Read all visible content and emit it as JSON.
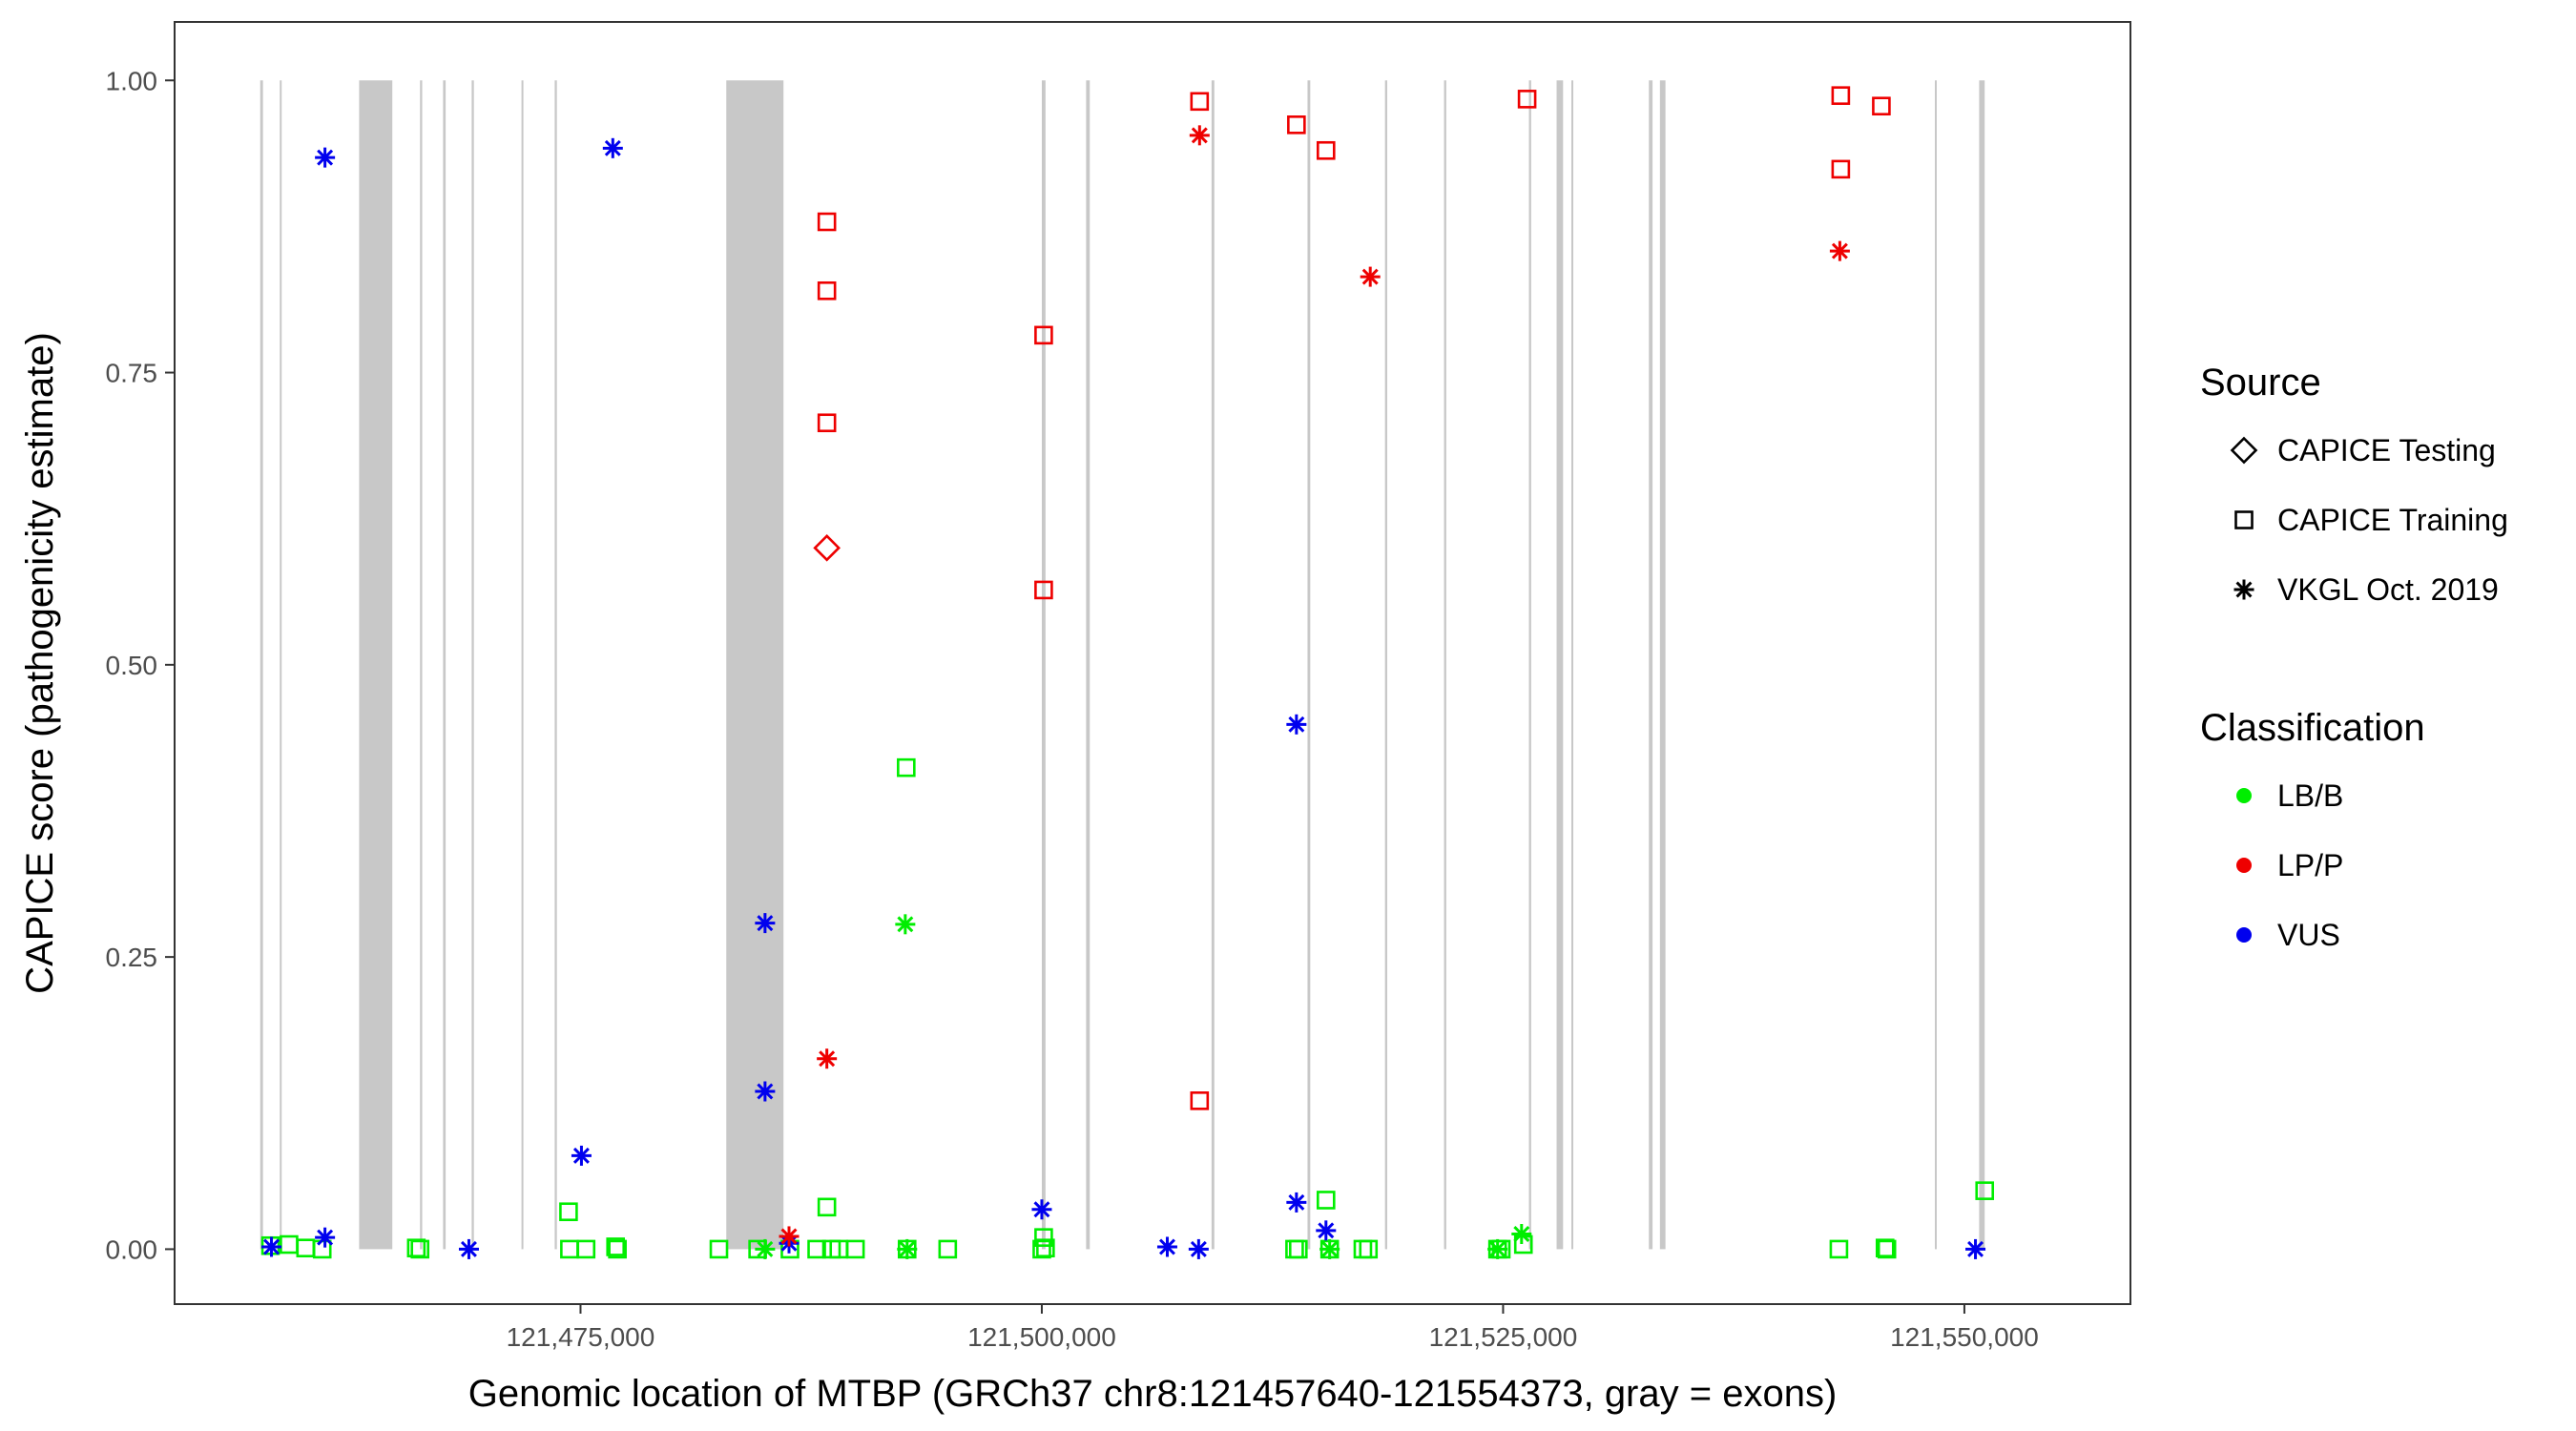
{
  "chart_data": {
    "type": "scatter",
    "title": "",
    "xlabel": "Genomic location of MTBP (GRCh37 chr8:121457640-121554373, gray = exons)",
    "ylabel": "CAPICE score (pathogenicity estimate)",
    "xlim": [
      121453000,
      121559000
    ],
    "ylim": [
      -0.047,
      1.05
    ],
    "x_ticks": [
      121475000,
      121500000,
      121525000,
      121550000
    ],
    "x_tick_labels": [
      "121,475,000",
      "121,500,000",
      "121,525,000",
      "121,550,000"
    ],
    "y_ticks": [
      0,
      0.25,
      0.5,
      0.75,
      1
    ],
    "y_tick_labels": [
      "0.00",
      "0.25",
      "0.50",
      "0.75",
      "1.00"
    ],
    "grid": false,
    "exon_color": "#c8c8c8",
    "exons": [
      [
        121457640,
        121457790
      ],
      [
        121458700,
        121458800
      ],
      [
        121463000,
        121464800
      ],
      [
        121466300,
        121466420
      ],
      [
        121467550,
        121467690
      ],
      [
        121469100,
        121469220
      ],
      [
        121471800,
        121471900
      ],
      [
        121473600,
        121473720
      ],
      [
        121482900,
        121486000
      ],
      [
        121500000,
        121500200
      ],
      [
        121502400,
        121502600
      ],
      [
        121509200,
        121509350
      ],
      [
        121514400,
        121514550
      ],
      [
        121518600,
        121518720
      ],
      [
        121521800,
        121521920
      ],
      [
        121526400,
        121526520
      ],
      [
        121527900,
        121528250
      ],
      [
        121528700,
        121528800
      ],
      [
        121532900,
        121533100
      ],
      [
        121533500,
        121533800
      ],
      [
        121548400,
        121548500
      ],
      [
        121550800,
        121551100
      ]
    ],
    "legend": {
      "placement": "right",
      "source_title": "Source",
      "source_entries": [
        {
          "label": "CAPICE Testing",
          "shape": "diamond"
        },
        {
          "label": "CAPICE Training",
          "shape": "square"
        },
        {
          "label": "VKGL Oct. 2019",
          "shape": "asterisk"
        }
      ],
      "class_title": "Classification",
      "class_entries": [
        {
          "label": "LB/B",
          "color": "#00ee00"
        },
        {
          "label": "LP/P",
          "color": "#ee0000"
        },
        {
          "label": "VUS",
          "color": "#0000ee"
        }
      ]
    },
    "series": [
      {
        "name": "CAPICE Training",
        "shape": "square",
        "points": [
          {
            "x": 121488350,
            "y": 0.879,
            "cls": "LP/P"
          },
          {
            "x": 121488350,
            "y": 0.82,
            "cls": "LP/P"
          },
          {
            "x": 121488350,
            "y": 0.707,
            "cls": "LP/P"
          },
          {
            "x": 121500100,
            "y": 0.782,
            "cls": "LP/P"
          },
          {
            "x": 121500100,
            "y": 0.564,
            "cls": "LP/P"
          },
          {
            "x": 121508550,
            "y": 0.982,
            "cls": "LP/P"
          },
          {
            "x": 121508550,
            "y": 0.127,
            "cls": "LP/P"
          },
          {
            "x": 121513800,
            "y": 0.962,
            "cls": "LP/P"
          },
          {
            "x": 121515400,
            "y": 0.94,
            "cls": "LP/P"
          },
          {
            "x": 121526300,
            "y": 0.984,
            "cls": "LP/P"
          },
          {
            "x": 121543300,
            "y": 0.987,
            "cls": "LP/P"
          },
          {
            "x": 121545500,
            "y": 0.978,
            "cls": "LP/P"
          },
          {
            "x": 121543300,
            "y": 0.924,
            "cls": "LP/P"
          },
          {
            "x": 121492650,
            "y": 0.412,
            "cls": "LB/B"
          },
          {
            "x": 121474350,
            "y": 0.032,
            "cls": "LB/B"
          },
          {
            "x": 121488350,
            "y": 0.036,
            "cls": "LB/B"
          },
          {
            "x": 121515400,
            "y": 0.042,
            "cls": "LB/B"
          },
          {
            "x": 121551100,
            "y": 0.05,
            "cls": "LB/B"
          },
          {
            "x": 121500100,
            "y": 0.01,
            "cls": "LB/B"
          },
          {
            "x": 121458200,
            "y": 0.003,
            "cls": "LB/B"
          },
          {
            "x": 121459200,
            "y": 0.004,
            "cls": "LB/B"
          },
          {
            "x": 121460100,
            "y": 0.001,
            "cls": "LB/B"
          },
          {
            "x": 121461000,
            "y": 0.0,
            "cls": "LB/B"
          },
          {
            "x": 121466100,
            "y": 0.001,
            "cls": "LB/B"
          },
          {
            "x": 121466300,
            "y": 0.0,
            "cls": "LB/B"
          },
          {
            "x": 121474400,
            "y": 0.0,
            "cls": "LB/B"
          },
          {
            "x": 121475300,
            "y": 0.0,
            "cls": "LB/B"
          },
          {
            "x": 121476900,
            "y": 0.002,
            "cls": "LB/B"
          },
          {
            "x": 121477000,
            "y": 0.0,
            "cls": "LB/B"
          },
          {
            "x": 121482500,
            "y": 0.0,
            "cls": "LB/B"
          },
          {
            "x": 121484600,
            "y": 0.0,
            "cls": "LB/B"
          },
          {
            "x": 121486350,
            "y": 0.0,
            "cls": "LB/B"
          },
          {
            "x": 121487800,
            "y": 0.0,
            "cls": "LB/B"
          },
          {
            "x": 121488600,
            "y": 0.0,
            "cls": "LB/B"
          },
          {
            "x": 121489000,
            "y": 0.0,
            "cls": "LB/B"
          },
          {
            "x": 121489900,
            "y": 0.0,
            "cls": "LB/B"
          },
          {
            "x": 121492700,
            "y": 0.0,
            "cls": "LB/B"
          },
          {
            "x": 121494900,
            "y": 0.0,
            "cls": "LB/B"
          },
          {
            "x": 121500000,
            "y": 0.0,
            "cls": "LB/B"
          },
          {
            "x": 121500200,
            "y": 0.001,
            "cls": "LB/B"
          },
          {
            "x": 121513700,
            "y": 0.0,
            "cls": "LB/B"
          },
          {
            "x": 121513900,
            "y": 0.0,
            "cls": "LB/B"
          },
          {
            "x": 121515600,
            "y": 0.0,
            "cls": "LB/B"
          },
          {
            "x": 121517400,
            "y": 0.0,
            "cls": "LB/B"
          },
          {
            "x": 121517700,
            "y": 0.0,
            "cls": "LB/B"
          },
          {
            "x": 121524700,
            "y": 0.0,
            "cls": "LB/B"
          },
          {
            "x": 121524900,
            "y": 0.0,
            "cls": "LB/B"
          },
          {
            "x": 121526100,
            "y": 0.004,
            "cls": "LB/B"
          },
          {
            "x": 121543200,
            "y": 0.0,
            "cls": "LB/B"
          },
          {
            "x": 121545700,
            "y": 0.001,
            "cls": "LB/B"
          },
          {
            "x": 121545800,
            "y": 0.0,
            "cls": "LB/B"
          }
        ]
      },
      {
        "name": "CAPICE Testing",
        "shape": "diamond",
        "points": [
          {
            "x": 121488350,
            "y": 0.6,
            "cls": "LP/P"
          }
        ]
      },
      {
        "name": "VKGL Oct. 2019",
        "shape": "asterisk",
        "points": [
          {
            "x": 121461150,
            "y": 0.934,
            "cls": "VUS"
          },
          {
            "x": 121476750,
            "y": 0.942,
            "cls": "VUS"
          },
          {
            "x": 121485000,
            "y": 0.279,
            "cls": "VUS"
          },
          {
            "x": 121485000,
            "y": 0.135,
            "cls": "VUS"
          },
          {
            "x": 121475050,
            "y": 0.08,
            "cls": "VUS"
          },
          {
            "x": 121513800,
            "y": 0.449,
            "cls": "VUS"
          },
          {
            "x": 121513800,
            "y": 0.04,
            "cls": "VUS"
          },
          {
            "x": 121515400,
            "y": 0.016,
            "cls": "VUS"
          },
          {
            "x": 121500000,
            "y": 0.034,
            "cls": "VUS"
          },
          {
            "x": 121458250,
            "y": 0.002,
            "cls": "VUS"
          },
          {
            "x": 121461150,
            "y": 0.01,
            "cls": "VUS"
          },
          {
            "x": 121468950,
            "y": 0.0,
            "cls": "VUS"
          },
          {
            "x": 121486300,
            "y": 0.005,
            "cls": "VUS"
          },
          {
            "x": 121506800,
            "y": 0.002,
            "cls": "VUS"
          },
          {
            "x": 121508500,
            "y": 0.0,
            "cls": "VUS"
          },
          {
            "x": 121550600,
            "y": 0.0,
            "cls": "VUS"
          },
          {
            "x": 121508550,
            "y": 0.953,
            "cls": "LP/P"
          },
          {
            "x": 121517800,
            "y": 0.832,
            "cls": "LP/P"
          },
          {
            "x": 121543250,
            "y": 0.854,
            "cls": "LP/P"
          },
          {
            "x": 121488350,
            "y": 0.163,
            "cls": "LP/P"
          },
          {
            "x": 121486300,
            "y": 0.011,
            "cls": "LP/P"
          },
          {
            "x": 121492600,
            "y": 0.278,
            "cls": "LB/B"
          },
          {
            "x": 121526000,
            "y": 0.013,
            "cls": "LB/B"
          },
          {
            "x": 121485000,
            "y": 0.0,
            "cls": "LB/B"
          },
          {
            "x": 121492700,
            "y": 0.0,
            "cls": "LB/B"
          },
          {
            "x": 121515600,
            "y": 0.0,
            "cls": "LB/B"
          },
          {
            "x": 121524700,
            "y": 0.0,
            "cls": "LB/B"
          }
        ]
      }
    ]
  }
}
